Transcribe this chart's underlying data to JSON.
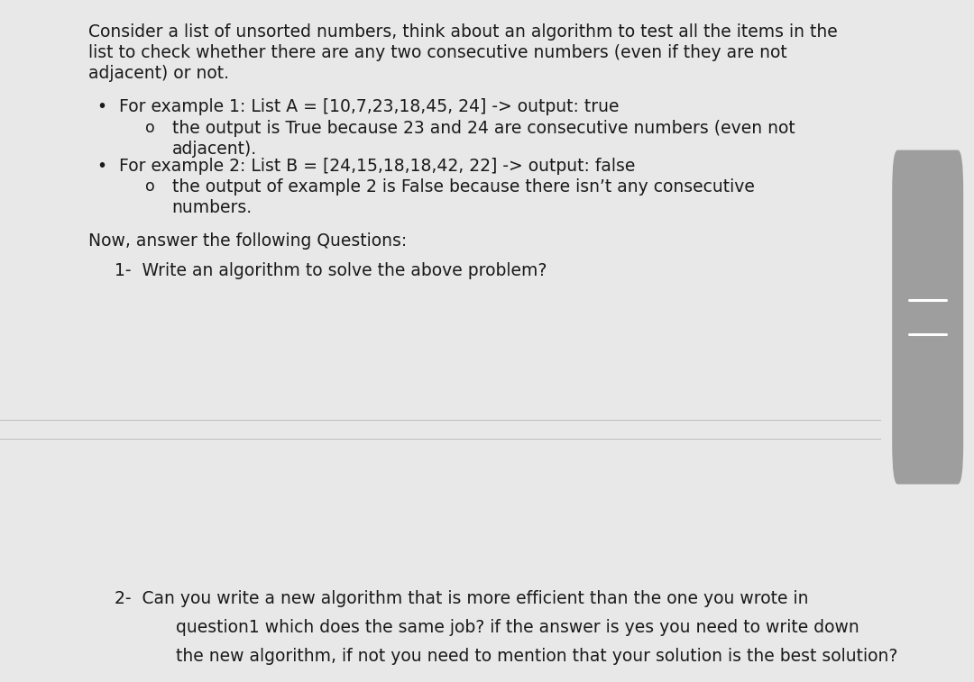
{
  "bg_color": "#e8e8e8",
  "panel_color": "#ffffff",
  "text_color": "#1a1a1a",
  "scrollbar_track_color": "#9e9e9e",
  "scrollbar_bg": "#c8c8c8",
  "divider_color": "#c0c0c0",
  "divider_bg": "#d8d8d8",
  "font_size": 13.5,
  "line1": "Consider a list of unsorted numbers, think about an algorithm to test all the items in the",
  "line2": "list to check whether there are any two consecutive numbers (even if they are not",
  "line3": "adjacent) or not.",
  "b1_text": "For example 1: List A = [10,7,23,18,45, 24] -> output: true",
  "sb1_line1": "the output is True because 23 and 24 are consecutive numbers (even not",
  "sb1_line2": "adjacent).",
  "b2_text": "For example 2: List B = [24,15,18,18,42, 22] -> output: false",
  "sb2_line1": "the output of example 2 is False because there isn’t any consecutive",
  "sb2_line2": "numbers.",
  "now_text": "Now, answer the following Questions:",
  "q1_text": "1-  Write an algorithm to solve the above problem?",
  "q2_line1": "2-  Can you write a new algorithm that is more efficient than the one you wrote in",
  "q2_line2": "    question1 which does the same job? if the answer is yes you need to write down",
  "q2_line3": "    the new algorithm, if not you need to mention that your solution is the best solution?"
}
